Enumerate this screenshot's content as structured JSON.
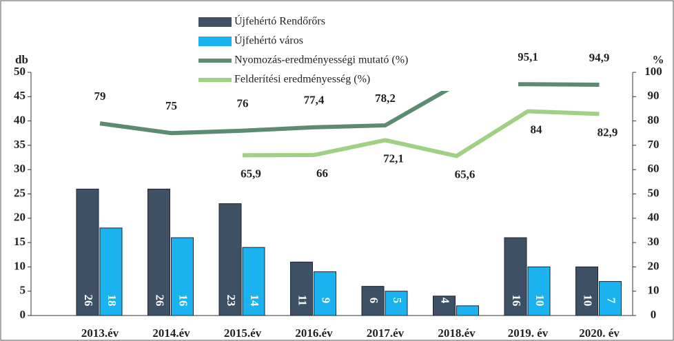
{
  "chart_data": {
    "type": "bar",
    "categories": [
      "2013.év",
      "2014.év",
      "2015.év",
      "2016.év",
      "2017.év",
      "2018.év",
      "2019. év",
      "2020. év"
    ],
    "y_label": "db",
    "y2_label": "%",
    "ylim": [
      0,
      50
    ],
    "yticks": [
      0,
      5,
      10,
      15,
      20,
      25,
      30,
      35,
      40,
      45,
      50
    ],
    "y2lim": [
      0,
      100
    ],
    "y2ticks": [
      0,
      10,
      20,
      30,
      40,
      50,
      60,
      70,
      80,
      90,
      100
    ],
    "series": [
      {
        "name": "Újfehértó Rendőrőrs",
        "type": "bar",
        "color": "#3e5063",
        "values": [
          26,
          26,
          23,
          11,
          6,
          4,
          16,
          10
        ]
      },
      {
        "name": "Újfehértó város",
        "type": "bar",
        "color": "#1ab2ef",
        "values": [
          18,
          16,
          14,
          9,
          5,
          2,
          10,
          7
        ]
      },
      {
        "name": "Nyomozás-eredményességi mutató (%)",
        "type": "line",
        "axis": "y2",
        "color": "#5b8c72",
        "values": [
          79,
          75,
          76,
          77.4,
          78.2,
          95,
          95.1,
          94.9
        ],
        "value_labels": [
          "79",
          "75",
          "76",
          "77,4",
          "78,2",
          null,
          "95,1",
          "94,9"
        ]
      },
      {
        "name": "Felderítési eredményesség (%)",
        "type": "line",
        "axis": "y2",
        "color": "#9fd083",
        "values": [
          null,
          null,
          65.9,
          66,
          72.1,
          65.6,
          84,
          82.9
        ],
        "value_labels": [
          null,
          null,
          "65,9",
          "66",
          "72,1",
          "65,6",
          "84",
          "82,9"
        ]
      }
    ]
  }
}
